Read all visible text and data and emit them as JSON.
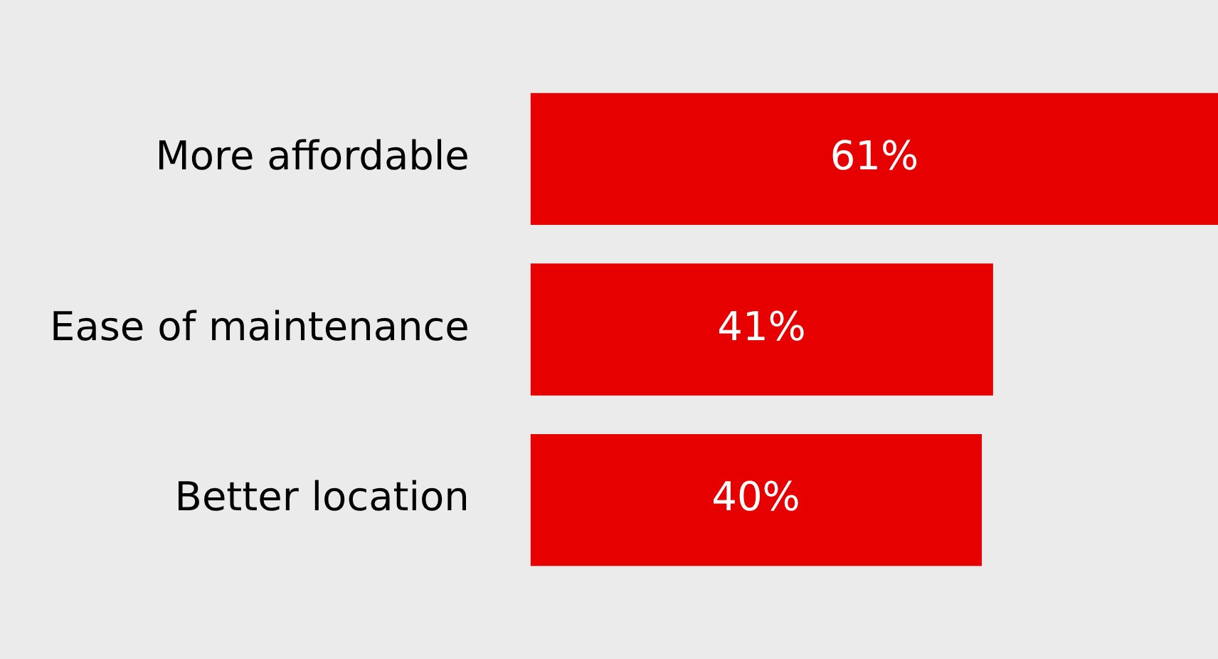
{
  "chart_data": {
    "type": "bar",
    "orientation": "horizontal",
    "categories": [
      "More affordable",
      "Ease of maintenance",
      "Better location"
    ],
    "values": [
      61,
      41,
      40
    ],
    "color": "#e60000",
    "value_labels": [
      "61%",
      "41%",
      "40%"
    ],
    "xlim": [
      0,
      61
    ],
    "legend": false
  }
}
